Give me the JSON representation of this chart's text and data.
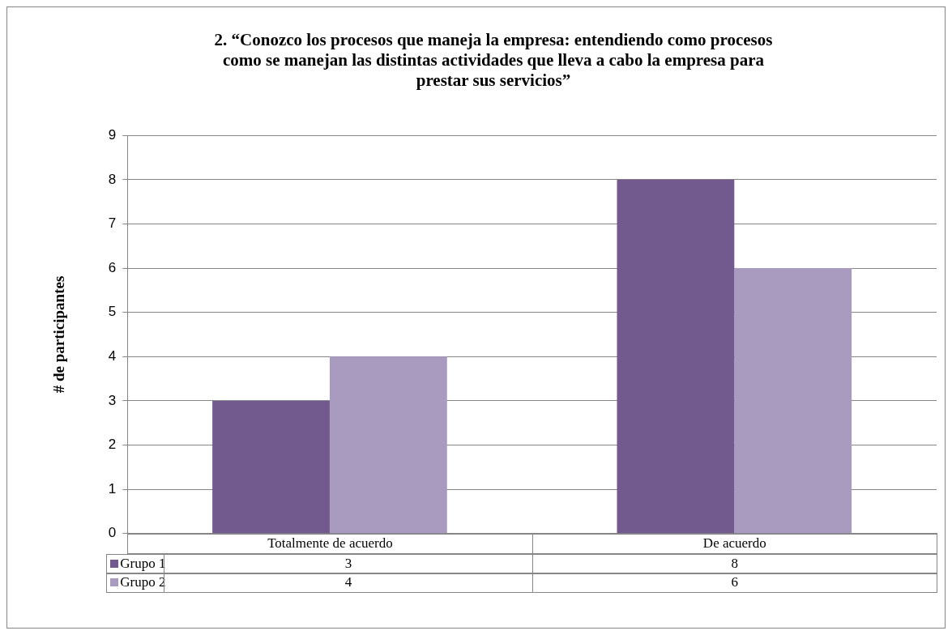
{
  "chart_data": {
    "type": "bar",
    "title": "2. “Conozco los procesos que maneja la empresa: entendiendo como procesos como se manejan las distintas actividades que lleva a cabo la empresa para prestar sus servicios”",
    "ylabel": "# de participantes",
    "categories": [
      "Totalmente de acuerdo",
      "De acuerdo"
    ],
    "series": [
      {
        "name": "Grupo 1",
        "color": "#725a8f",
        "values": [
          3,
          8
        ]
      },
      {
        "name": "Grupo 2",
        "color": "#a99bbf",
        "values": [
          4,
          6
        ]
      }
    ],
    "ylim": [
      0,
      9
    ],
    "yticks": [
      0,
      1,
      2,
      3,
      4,
      5,
      6,
      7,
      8,
      9
    ],
    "grid": "y",
    "legend": "bottom",
    "data_labels": true
  }
}
